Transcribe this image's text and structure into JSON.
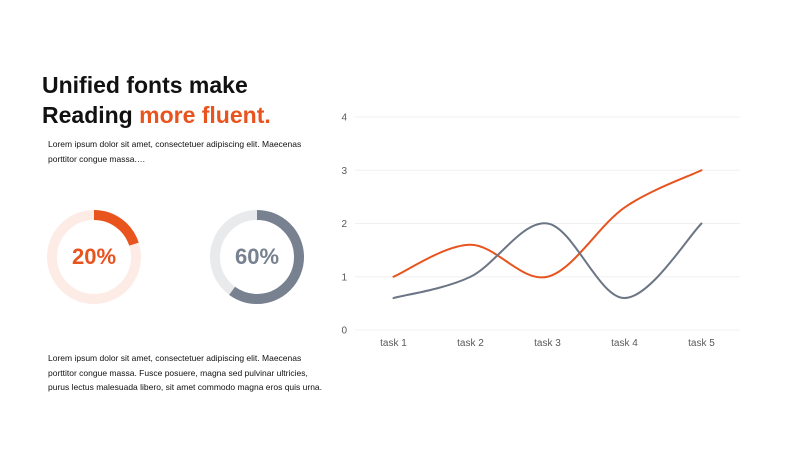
{
  "slide": {
    "title_line1": "Unified fonts make",
    "title_line2_prefix": "Reading ",
    "title_line2_accent": "more fluent.",
    "paragraph1": "Lorem ipsum dolor sit amet, consectetuer adipiscing elit. Maecenas porttitor congue massa.…",
    "paragraph2": "Lorem ipsum dolor sit amet, consectetuer adipiscing elit. Maecenas porttitor congue massa. Fusce posuere, magna sed pulvinar ultricies, purus lectus malesuada libero, sit amet commodo magna eros quis urna."
  },
  "donuts": [
    {
      "label": "20%",
      "value": 0.2,
      "color": "#e8531e",
      "track_color": "#fdece6"
    },
    {
      "label": "60%",
      "value": 0.6,
      "color": "#77818f",
      "track_color": "#e9eaeb"
    }
  ],
  "colors": {
    "accent": "#e8531e",
    "gray": "#6b7585",
    "grid": "#f0f0f0",
    "axis_text": "#595959"
  },
  "chart_data": {
    "type": "line",
    "categories": [
      "task 1",
      "task 2",
      "task 3",
      "task 4",
      "task 5"
    ],
    "yticks": [
      "0",
      "1",
      "2",
      "3",
      "4"
    ],
    "ylim": [
      0,
      4
    ],
    "grid": true,
    "smooth": true,
    "series": [
      {
        "values": [
          1,
          1.6,
          1,
          2.3,
          3
        ],
        "color": "#e8531e"
      },
      {
        "values": [
          0.6,
          1,
          2,
          0.6,
          2
        ],
        "color": "#6b7585"
      }
    ]
  }
}
